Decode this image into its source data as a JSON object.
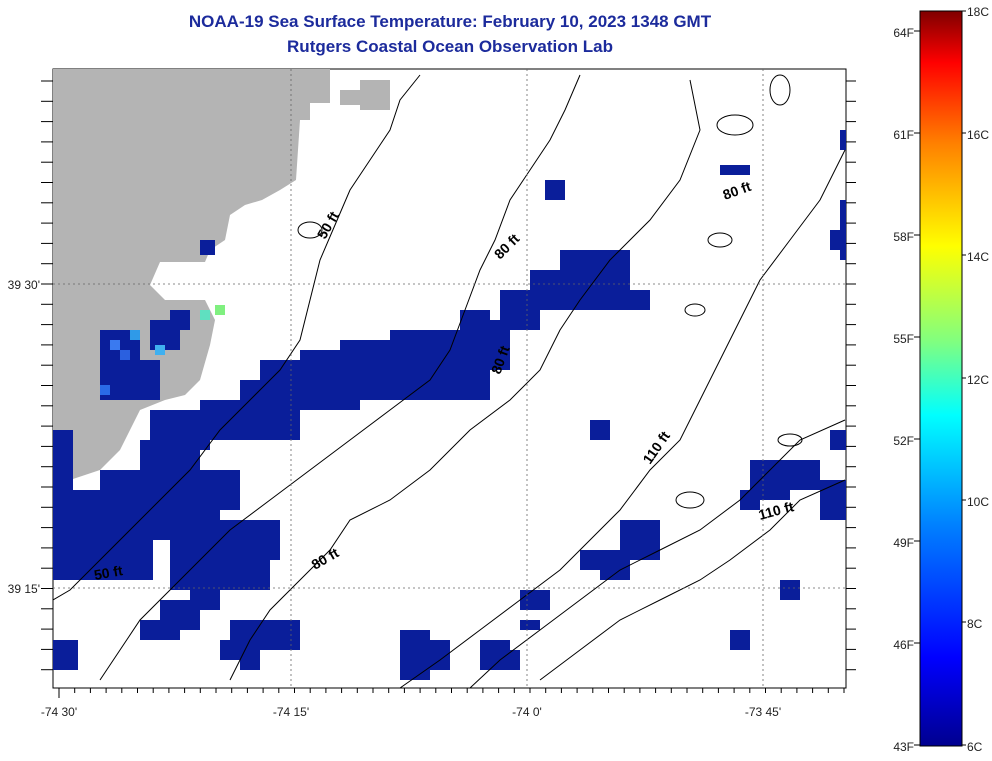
{
  "title": "NOAA-19 Sea Surface Temperature:  February 10, 2023 1348 GMT",
  "subtitle": "Rutgers Coastal Ocean Observation Lab",
  "x_ticks": [
    "-74 30'",
    "-74 15'",
    "-74 0'",
    "-73 45'"
  ],
  "y_ticks": [
    "39 30'",
    "39 15'"
  ],
  "contour_labels": [
    "50 ft",
    "50 ft",
    "80 ft",
    "80 ft",
    "80 ft",
    "80 ft",
    "110 ft",
    "110 ft"
  ],
  "colorbar": {
    "fahrenheit": [
      "64F",
      "61F",
      "58F",
      "55F",
      "52F",
      "49F",
      "46F",
      "43F"
    ],
    "celsius": [
      "18C",
      "16C",
      "14C",
      "12C",
      "10C",
      "8C",
      "6C"
    ],
    "colors": [
      "#7f0000",
      "#ff0000",
      "#ff8000",
      "#ffff00",
      "#80ff80",
      "#00ffff",
      "#0080ff",
      "#0000ff",
      "#00008f"
    ]
  },
  "land_color": "#b4b4b4",
  "sst_color": "#0a1e9a"
}
